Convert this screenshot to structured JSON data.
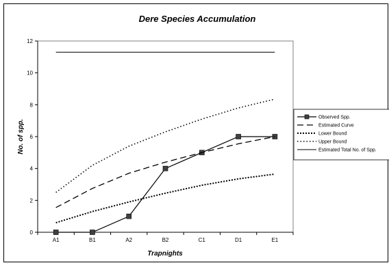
{
  "chart_data": {
    "type": "line",
    "title": "Dere Species Accumulation",
    "xlabel": "Trapnights",
    "ylabel": "No. of spp.",
    "categories": [
      "A1",
      "B1",
      "A2",
      "B2",
      "C1",
      "D1",
      "E1"
    ],
    "ylim": [
      0,
      12
    ],
    "yticks": [
      0,
      2,
      4,
      6,
      8,
      10,
      12
    ],
    "grid": false,
    "legend_position": "right",
    "series": [
      {
        "name": "Observed Spp.",
        "style": "solid-marker",
        "values": [
          0,
          0,
          1,
          4,
          5,
          6,
          6
        ]
      },
      {
        "name": "Estimated Curve",
        "style": "long-dash",
        "values": [
          1.55,
          2.75,
          3.7,
          4.4,
          5.0,
          5.55,
          6.0
        ]
      },
      {
        "name": "Lower Bound",
        "style": "dotted-bold",
        "values": [
          0.6,
          1.3,
          1.9,
          2.45,
          2.95,
          3.35,
          3.65
        ]
      },
      {
        "name": "Upper Bound",
        "style": "dotted",
        "values": [
          2.5,
          4.2,
          5.4,
          6.3,
          7.1,
          7.8,
          8.35
        ]
      },
      {
        "name": "Estimated Total No. of Spp.",
        "style": "solid",
        "values": [
          11.3,
          11.3,
          11.3,
          11.3,
          11.3,
          11.3,
          11.3
        ]
      }
    ]
  }
}
